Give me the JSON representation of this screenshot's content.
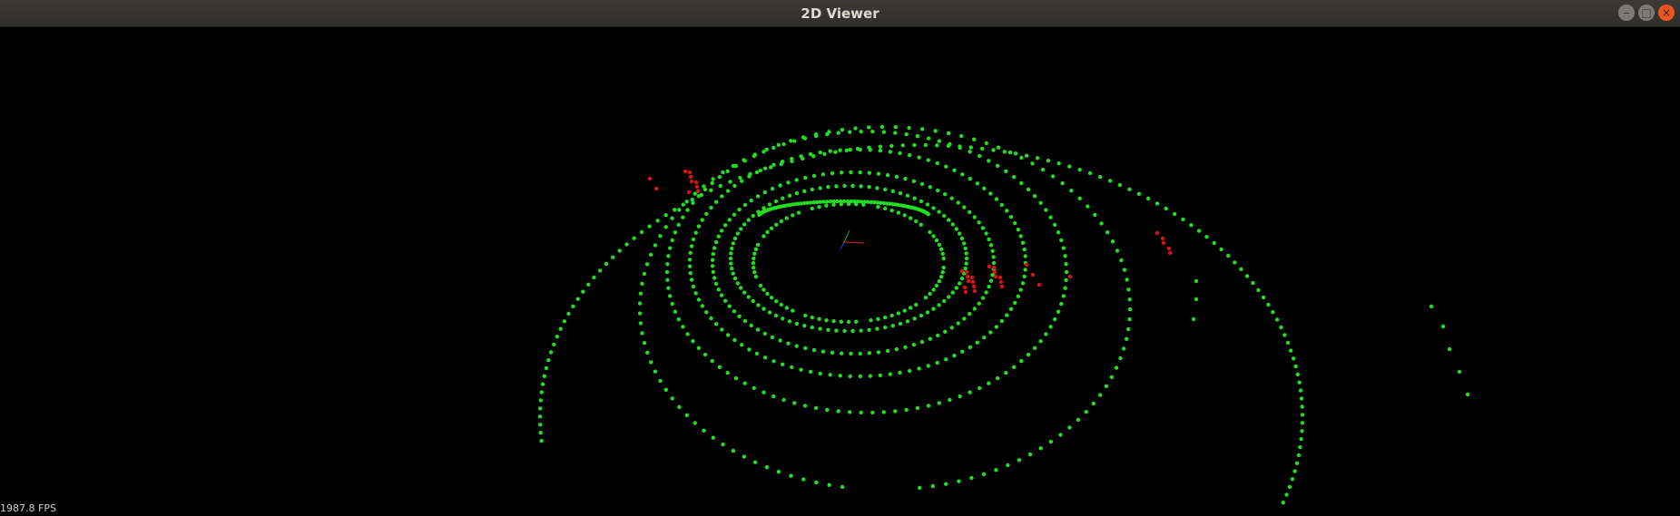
{
  "window": {
    "title": "2D Viewer",
    "buttons": {
      "minimize": "–",
      "maximize": "□",
      "close": "×"
    }
  },
  "viewport": {
    "background": "#000000",
    "fps_label": "1987.8 FPS",
    "point_colors": {
      "ground": "#22dd22",
      "obstacle": "#dd1111"
    },
    "axis_colors": {
      "x": "#dd2222",
      "y": "#22aa22",
      "z": "#2244dd"
    }
  }
}
